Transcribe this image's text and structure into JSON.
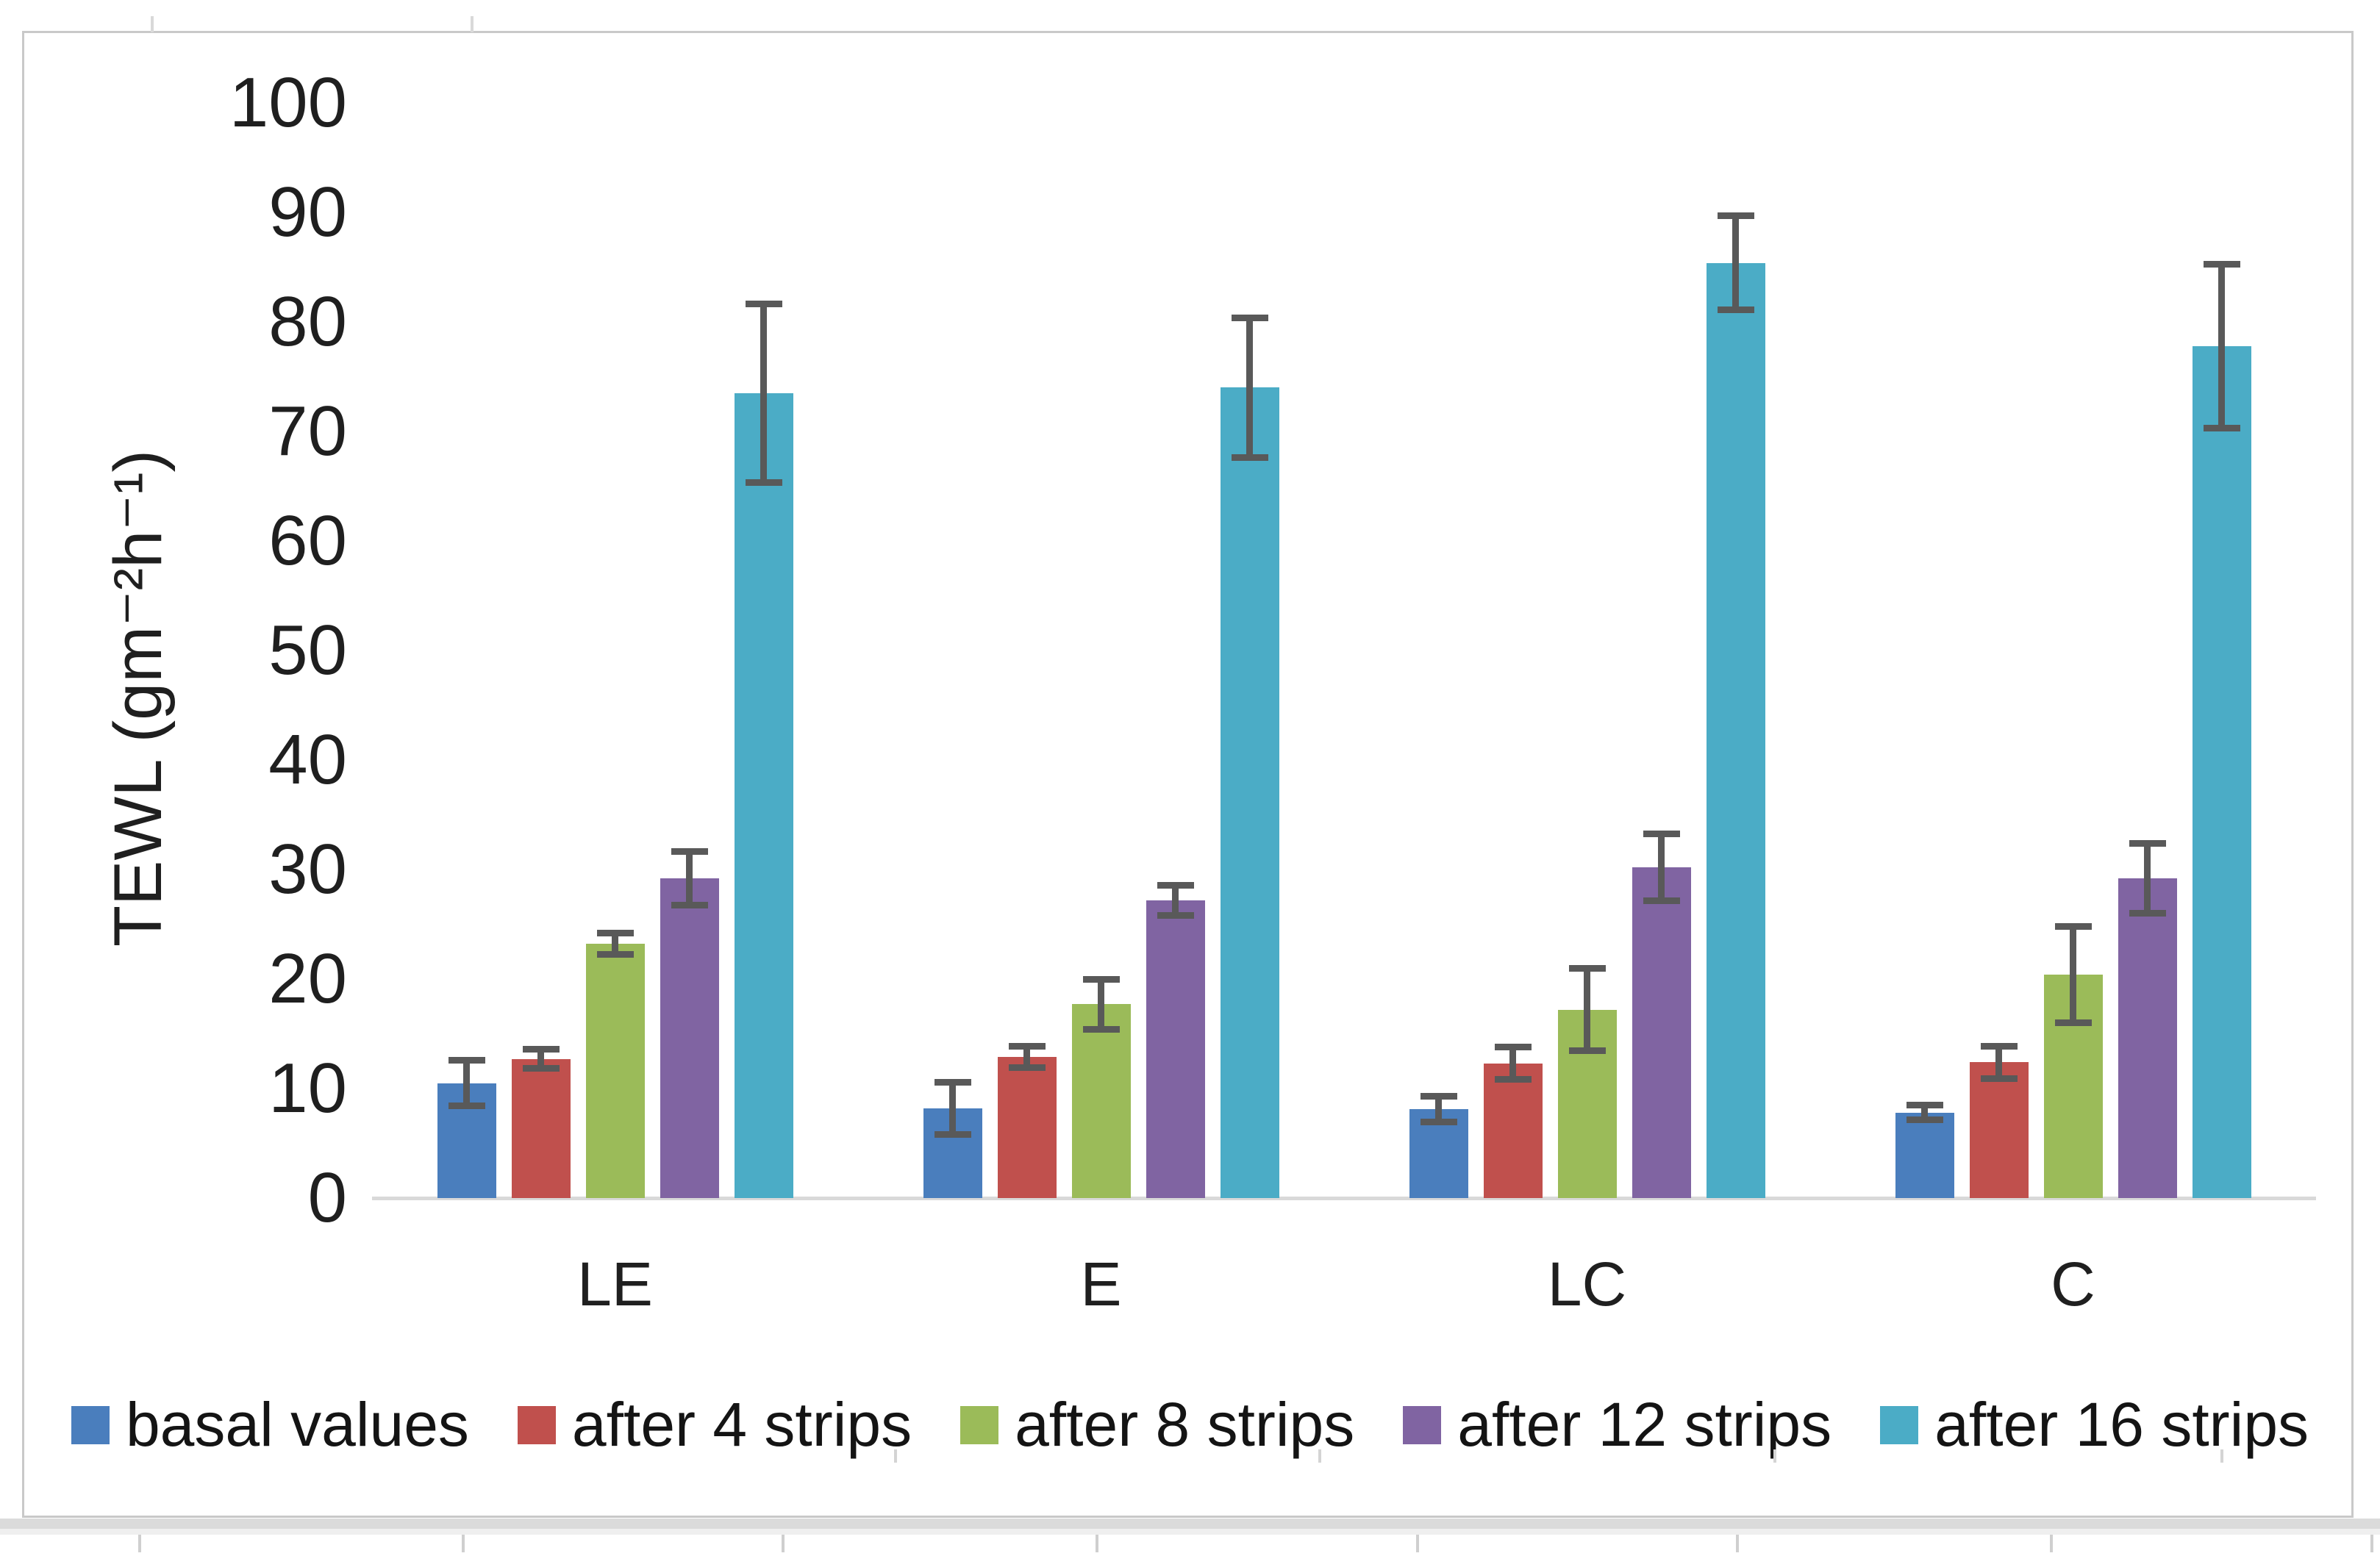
{
  "chart_data": {
    "type": "bar",
    "title": "",
    "ylabel": "TEWL (gm⁻²h⁻¹)",
    "xlabel": "",
    "ylim": [
      0,
      100
    ],
    "ytick_step": 10,
    "yticks": [
      0,
      10,
      20,
      30,
      40,
      50,
      60,
      70,
      80,
      90,
      100
    ],
    "grid": "off",
    "legend_position": "bottom",
    "categories": [
      "LE",
      "E",
      "LC",
      "C"
    ],
    "series": [
      {
        "name": "basal values",
        "color": "#4A7EBD",
        "values": [
          10.5,
          8.2,
          8.1,
          7.8
        ],
        "errors": [
          2.1,
          2.4,
          1.2,
          0.7
        ]
      },
      {
        "name": "after 4 strips",
        "color": "#C0504D",
        "values": [
          12.7,
          12.9,
          12.3,
          12.4
        ],
        "errors": [
          0.9,
          1.0,
          1.5,
          1.5
        ]
      },
      {
        "name": "after 8 strips",
        "color": "#9BBB59",
        "values": [
          23.2,
          17.7,
          17.2,
          20.4
        ],
        "errors": [
          1.0,
          2.3,
          3.8,
          4.4
        ]
      },
      {
        "name": "after 12 strips",
        "color": "#8064A2",
        "values": [
          29.2,
          27.2,
          30.2,
          29.2
        ],
        "errors": [
          2.5,
          1.4,
          3.1,
          3.2
        ]
      },
      {
        "name": "after 16 strips",
        "color": "#4BACC6",
        "values": [
          73.5,
          74.0,
          85.4,
          77.8
        ],
        "errors": [
          8.2,
          6.4,
          4.3,
          7.5
        ]
      }
    ],
    "error_bar_color": "#595959",
    "axis_line_color": "#d9d9d9",
    "text_color": "#1f1f1f",
    "border_color": "#c9c9c9"
  }
}
